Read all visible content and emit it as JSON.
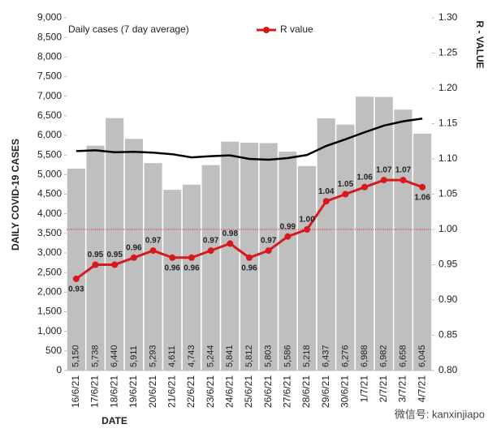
{
  "chart_data": {
    "type": "bar-line",
    "categories": [
      "16/6/21",
      "17/6/21",
      "18/6/21",
      "19/6/21",
      "20/6/21",
      "21/6/21",
      "22/6/21",
      "23/6/21",
      "24/6/21",
      "25/6/21",
      "26/6/21",
      "27/6/21",
      "28/6/21",
      "29/6/21",
      "30/6/21",
      "1/7/21",
      "2/7/21",
      "3/7/21",
      "4/7/21"
    ],
    "series": [
      {
        "type": "bar",
        "color": "#bfbfbf",
        "values": [
          5150,
          5738,
          6440,
          5911,
          5293,
          4611,
          4743,
          5244,
          5841,
          5812,
          5803,
          5586,
          5218,
          6437,
          6276,
          6988,
          6982,
          6658,
          6045
        ],
        "value_labels": [
          "5,150",
          "5,738",
          "6,440",
          "5,911",
          "5,293",
          "4,611",
          "4,743",
          "5,244",
          "5,841",
          "5,812",
          "5,803",
          "5,586",
          "5,218",
          "6,437",
          "6,276",
          "6,988",
          "6,982",
          "6,658",
          "6,045"
        ]
      },
      {
        "type": "line",
        "name": "Daily cases (7 day average)",
        "color": "#000000",
        "values": [
          5600,
          5620,
          5570,
          5580,
          5560,
          5520,
          5440,
          5470,
          5490,
          5400,
          5380,
          5420,
          5500,
          5730,
          5900,
          6080,
          6250,
          6360,
          6430
        ]
      },
      {
        "type": "line",
        "name": "R value",
        "color": "#d7191c",
        "axis": "y2",
        "values": [
          0.93,
          0.95,
          0.95,
          0.96,
          0.97,
          0.96,
          0.96,
          0.97,
          0.98,
          0.96,
          0.97,
          0.99,
          1.0,
          1.04,
          1.05,
          1.06,
          1.07,
          1.07,
          1.06
        ],
        "value_labels": [
          "0.93",
          "0.95",
          "0.95",
          "0.96",
          "0.97",
          "0.96",
          "0.96",
          "0.97",
          "0.98",
          "0.96",
          "0.97",
          "0.99",
          "1.00",
          "1.04",
          "1.05",
          "1.06",
          "1.07",
          "1.07",
          "1.06"
        ]
      }
    ],
    "xlabel": "DATE",
    "ylabel": "DAILY COVID-19 CASES",
    "y2label": "R - VALUE",
    "ylim": [
      0,
      9000
    ],
    "yticks": [
      0,
      500,
      {
        "value": 1000,
        "label": "1,000"
      },
      {
        "value": 1500,
        "label": "1,500"
      },
      {
        "value": 2000,
        "label": "2,000"
      },
      {
        "value": 2500,
        "label": "2,500"
      },
      {
        "value": 3000,
        "label": "3,000"
      },
      {
        "value": 3500,
        "label": "3,500"
      },
      {
        "value": 4000,
        "label": "4,000"
      },
      {
        "value": 4500,
        "label": "4,500"
      },
      {
        "value": 5000,
        "label": "5,000"
      },
      {
        "value": 5500,
        "label": "5,500"
      },
      {
        "value": 6000,
        "label": "6,000"
      },
      {
        "value": 6500,
        "label": "6,500"
      },
      {
        "value": 7000,
        "label": "7,000"
      },
      {
        "value": 7500,
        "label": "7,500"
      },
      {
        "value": 8000,
        "label": "8,000"
      },
      {
        "value": 8500,
        "label": "8,500"
      },
      {
        "value": 9000,
        "label": "9,000"
      }
    ],
    "y2lim": [
      0.8,
      1.3
    ],
    "y2ticks": [
      {
        "value": 0.8,
        "label": "0.80"
      },
      {
        "value": 0.85,
        "label": "0.85"
      },
      {
        "value": 0.9,
        "label": "0.90"
      },
      {
        "value": 0.95,
        "label": "0.95"
      },
      {
        "value": 1.0,
        "label": "1.00"
      },
      {
        "value": 1.05,
        "label": "1.05"
      },
      {
        "value": 1.1,
        "label": "1.10"
      },
      {
        "value": 1.15,
        "label": "1.15"
      },
      {
        "value": 1.2,
        "label": "1.20"
      },
      {
        "value": 1.25,
        "label": "1.25"
      },
      {
        "value": 1.3,
        "label": "1.30"
      }
    ],
    "y2_reference": 1.0,
    "reference_color": "#d7191c"
  },
  "watermark": "微信号: kanxinjiapo"
}
